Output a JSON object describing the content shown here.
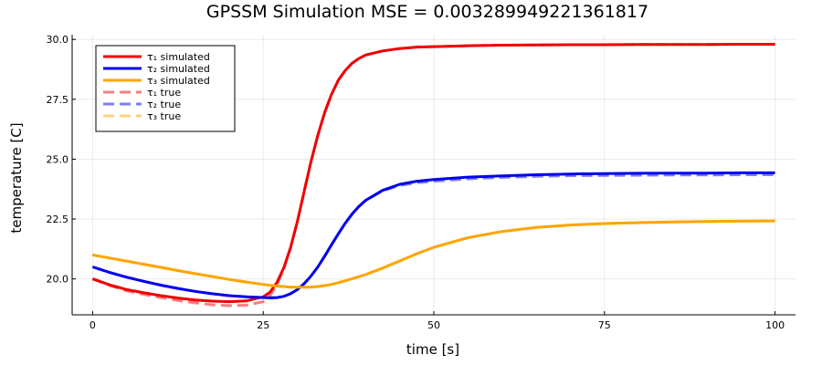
{
  "chart_data": {
    "type": "line",
    "title": "GPSSM Simulation MSE = 0.003289949221361817",
    "xlabel": "time [s]",
    "ylabel": "temperature [C]",
    "xlim": [
      -3,
      103
    ],
    "ylim": [
      18.5,
      30.2
    ],
    "xticks": [
      0,
      25,
      50,
      75,
      100
    ],
    "xtick_labels": [
      "0",
      "25",
      "50",
      "75",
      "100"
    ],
    "yticks": [
      20.0,
      22.5,
      25.0,
      27.5,
      30.0
    ],
    "ytick_labels": [
      "20.0",
      "22.5",
      "25.0",
      "27.5",
      "30.0"
    ],
    "grid": true,
    "legend_position": "top-left",
    "x": [
      0,
      2.5,
      5,
      7.5,
      10,
      12.5,
      15,
      17.5,
      20,
      22.5,
      25,
      26,
      27,
      28,
      29,
      30,
      31,
      32,
      33,
      34,
      35,
      36,
      37,
      38,
      39,
      40,
      42.5,
      45,
      47.5,
      50,
      55,
      60,
      65,
      70,
      75,
      80,
      85,
      90,
      95,
      100
    ],
    "series": [
      {
        "name": "τ₁ simulated",
        "color": "#ee0000",
        "dash": "solid",
        "opacity": 1,
        "values": [
          20.0,
          19.75,
          19.55,
          19.42,
          19.3,
          19.2,
          19.12,
          19.07,
          19.05,
          19.08,
          19.25,
          19.45,
          19.85,
          20.45,
          21.3,
          22.4,
          23.65,
          24.9,
          26.0,
          26.95,
          27.7,
          28.3,
          28.7,
          29.0,
          29.2,
          29.35,
          29.52,
          29.62,
          29.68,
          29.7,
          29.74,
          29.76,
          29.77,
          29.78,
          29.78,
          29.79,
          29.79,
          29.79,
          29.8,
          29.8
        ]
      },
      {
        "name": "τ₂ simulated",
        "color": "#0000ee",
        "dash": "solid",
        "opacity": 1,
        "values": [
          20.5,
          20.27,
          20.07,
          19.9,
          19.74,
          19.6,
          19.48,
          19.38,
          19.3,
          19.25,
          19.22,
          19.21,
          19.22,
          19.27,
          19.38,
          19.55,
          19.8,
          20.12,
          20.5,
          20.95,
          21.42,
          21.88,
          22.32,
          22.7,
          23.02,
          23.28,
          23.7,
          23.95,
          24.08,
          24.15,
          24.25,
          24.3,
          24.35,
          24.38,
          24.4,
          24.41,
          24.42,
          24.42,
          24.43,
          24.43
        ]
      },
      {
        "name": "τ₃ simulated",
        "color": "#ffa500",
        "dash": "solid",
        "opacity": 1,
        "values": [
          21.0,
          20.87,
          20.74,
          20.61,
          20.48,
          20.35,
          20.22,
          20.1,
          19.98,
          19.87,
          19.77,
          19.73,
          19.7,
          19.68,
          19.66,
          19.65,
          19.65,
          19.66,
          19.68,
          19.72,
          19.77,
          19.84,
          19.92,
          20.0,
          20.09,
          20.18,
          20.45,
          20.75,
          21.05,
          21.32,
          21.72,
          21.98,
          22.15,
          22.25,
          22.31,
          22.35,
          22.38,
          22.4,
          22.41,
          22.42
        ]
      },
      {
        "name": "τ₁ true",
        "color": "#ee0000",
        "dash": "dashed",
        "opacity": 0.5,
        "values": [
          20.0,
          19.72,
          19.5,
          19.35,
          19.22,
          19.1,
          19.0,
          18.92,
          18.88,
          18.9,
          19.05,
          19.3,
          19.75,
          20.4,
          21.3,
          22.4,
          23.65,
          24.9,
          26.0,
          26.95,
          27.7,
          28.3,
          28.7,
          29.0,
          29.2,
          29.35,
          29.52,
          29.62,
          29.68,
          29.7,
          29.74,
          29.76,
          29.77,
          29.78,
          29.78,
          29.79,
          29.79,
          29.79,
          29.8,
          29.8
        ]
      },
      {
        "name": "τ₂ true",
        "color": "#0000ee",
        "dash": "dashed",
        "opacity": 0.5,
        "values": [
          20.5,
          20.27,
          20.07,
          19.9,
          19.74,
          19.6,
          19.48,
          19.38,
          19.3,
          19.25,
          19.22,
          19.21,
          19.22,
          19.27,
          19.38,
          19.55,
          19.8,
          20.12,
          20.5,
          20.95,
          21.42,
          21.88,
          22.32,
          22.7,
          23.02,
          23.28,
          23.68,
          23.9,
          24.02,
          24.08,
          24.18,
          24.24,
          24.28,
          24.31,
          24.32,
          24.33,
          24.34,
          24.34,
          24.35,
          24.35
        ]
      },
      {
        "name": "τ₃ true",
        "color": "#ffa500",
        "dash": "dashed",
        "opacity": 0.5,
        "values": [
          21.0,
          20.87,
          20.74,
          20.61,
          20.48,
          20.35,
          20.22,
          20.1,
          19.98,
          19.87,
          19.77,
          19.73,
          19.7,
          19.68,
          19.66,
          19.65,
          19.65,
          19.66,
          19.68,
          19.72,
          19.77,
          19.84,
          19.92,
          20.0,
          20.09,
          20.18,
          20.45,
          20.75,
          21.05,
          21.32,
          21.72,
          21.98,
          22.15,
          22.25,
          22.31,
          22.35,
          22.38,
          22.4,
          22.41,
          22.42
        ]
      }
    ]
  }
}
